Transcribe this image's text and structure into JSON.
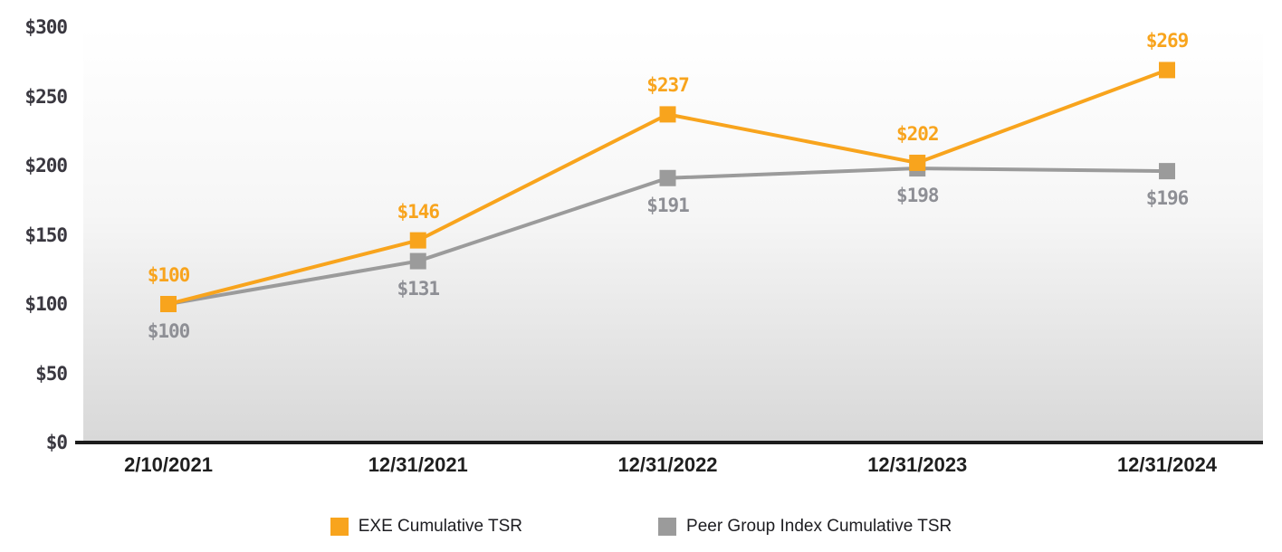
{
  "chart_data": {
    "type": "line",
    "title": "",
    "xlabel": "",
    "ylabel": "",
    "categories": [
      "2/10/2021",
      "12/31/2021",
      "12/31/2022",
      "12/31/2023",
      "12/31/2024"
    ],
    "series": [
      {
        "name": "EXE Cumulative TSR",
        "color": "#F8A41D",
        "label_color": "#F8A41D",
        "marker": "square",
        "values": [
          100,
          146,
          237,
          202,
          269
        ]
      },
      {
        "name": "Peer Group Index Cumulative TSR",
        "color": "#9B9B9B",
        "label_color": "#8E8F95",
        "marker": "square",
        "values": [
          100,
          131,
          191,
          198,
          196
        ]
      }
    ],
    "value_prefix": "$",
    "data_labels": {
      "exe": [
        "$100",
        "$146",
        "$237",
        "$202",
        "$269"
      ],
      "peer": [
        "$100",
        "$131",
        "$191",
        "$198",
        "$196"
      ]
    },
    "y_ticks": [
      "$0",
      "$50",
      "$100",
      "$150",
      "$200",
      "$250",
      "$300"
    ],
    "y_tick_step": 50,
    "ylim": [
      0,
      300
    ],
    "grid": false,
    "legend_position": "bottom",
    "legend": [
      "EXE Cumulative TSR",
      "Peer Group Index Cumulative TSR"
    ]
  },
  "colors": {
    "axis_line": "#1c1c1c",
    "x_label_text": "#1f1f1f",
    "y_tick_text": "#3a3840",
    "legend_text": "#1d1d21",
    "plot_gradient_top": "#ffffff",
    "plot_gradient_bottom": "#d8d8d8"
  }
}
